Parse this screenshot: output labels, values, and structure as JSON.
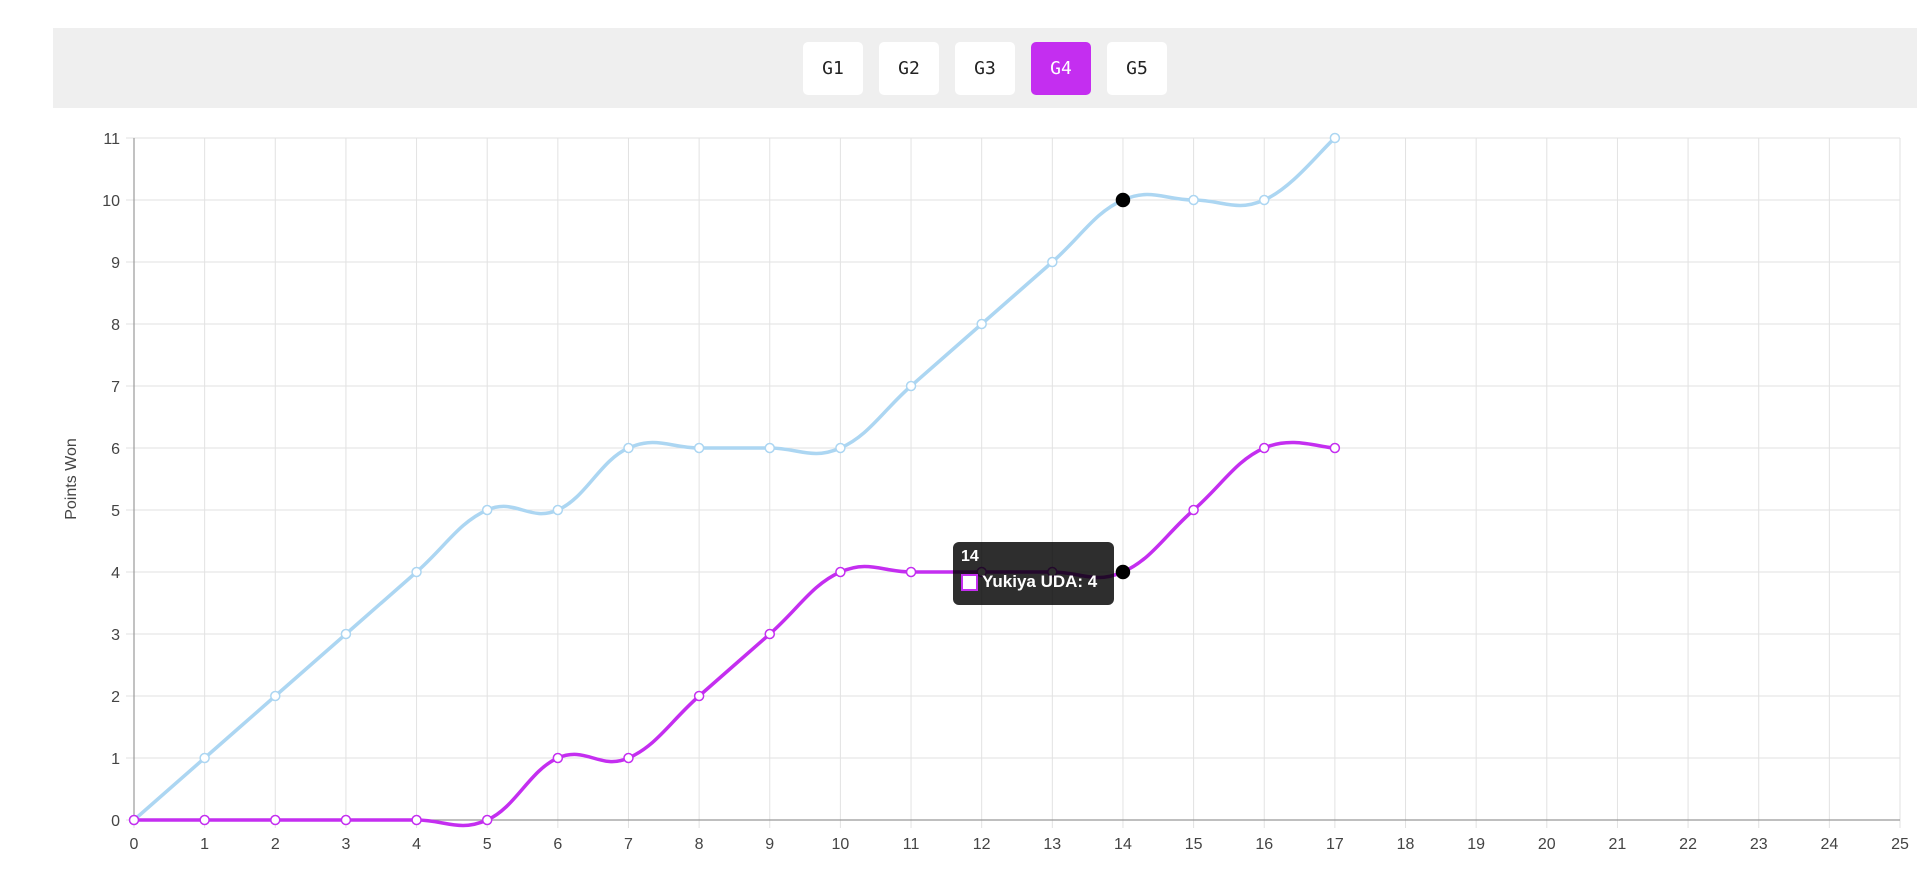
{
  "games": {
    "tabs": [
      "G1",
      "G2",
      "G3",
      "G4",
      "G5"
    ],
    "selected": "G4"
  },
  "colors": {
    "accent": "#c42ef0",
    "series_blue": "#acd6f2",
    "series_purple": "#c42ef0",
    "grid": "#e2e2e2"
  },
  "chart_data": {
    "type": "line",
    "ylabel": "Points Won",
    "xlabel": "",
    "xlim": [
      0,
      25
    ],
    "ylim": [
      0,
      11
    ],
    "x_ticks": [
      0,
      1,
      2,
      3,
      4,
      5,
      6,
      7,
      8,
      9,
      10,
      11,
      12,
      13,
      14,
      15,
      16,
      17,
      18,
      19,
      20,
      21,
      22,
      23,
      24,
      25
    ],
    "y_ticks": [
      0,
      1,
      2,
      3,
      4,
      5,
      6,
      7,
      8,
      9,
      10,
      11
    ],
    "grid": true,
    "series": [
      {
        "color": "#acd6f2",
        "x": [
          0,
          1,
          2,
          3,
          4,
          5,
          6,
          7,
          8,
          9,
          10,
          11,
          12,
          13,
          14,
          15,
          16,
          17
        ],
        "values": [
          0,
          1,
          2,
          3,
          4,
          5,
          5,
          6,
          6,
          6,
          6,
          7,
          8,
          9,
          10,
          10,
          10,
          11
        ]
      },
      {
        "name": "Yukiya UDA",
        "color": "#c42ef0",
        "x": [
          0,
          1,
          2,
          3,
          4,
          5,
          6,
          7,
          8,
          9,
          10,
          11,
          12,
          13,
          14,
          15,
          16,
          17
        ],
        "values": [
          0,
          0,
          0,
          0,
          0,
          0,
          1,
          1,
          2,
          3,
          4,
          4,
          4,
          4,
          4,
          5,
          6,
          6
        ]
      }
    ],
    "highlight_x": 14,
    "tooltip": {
      "title": "14",
      "label": "Yukiya UDA: 4"
    }
  }
}
